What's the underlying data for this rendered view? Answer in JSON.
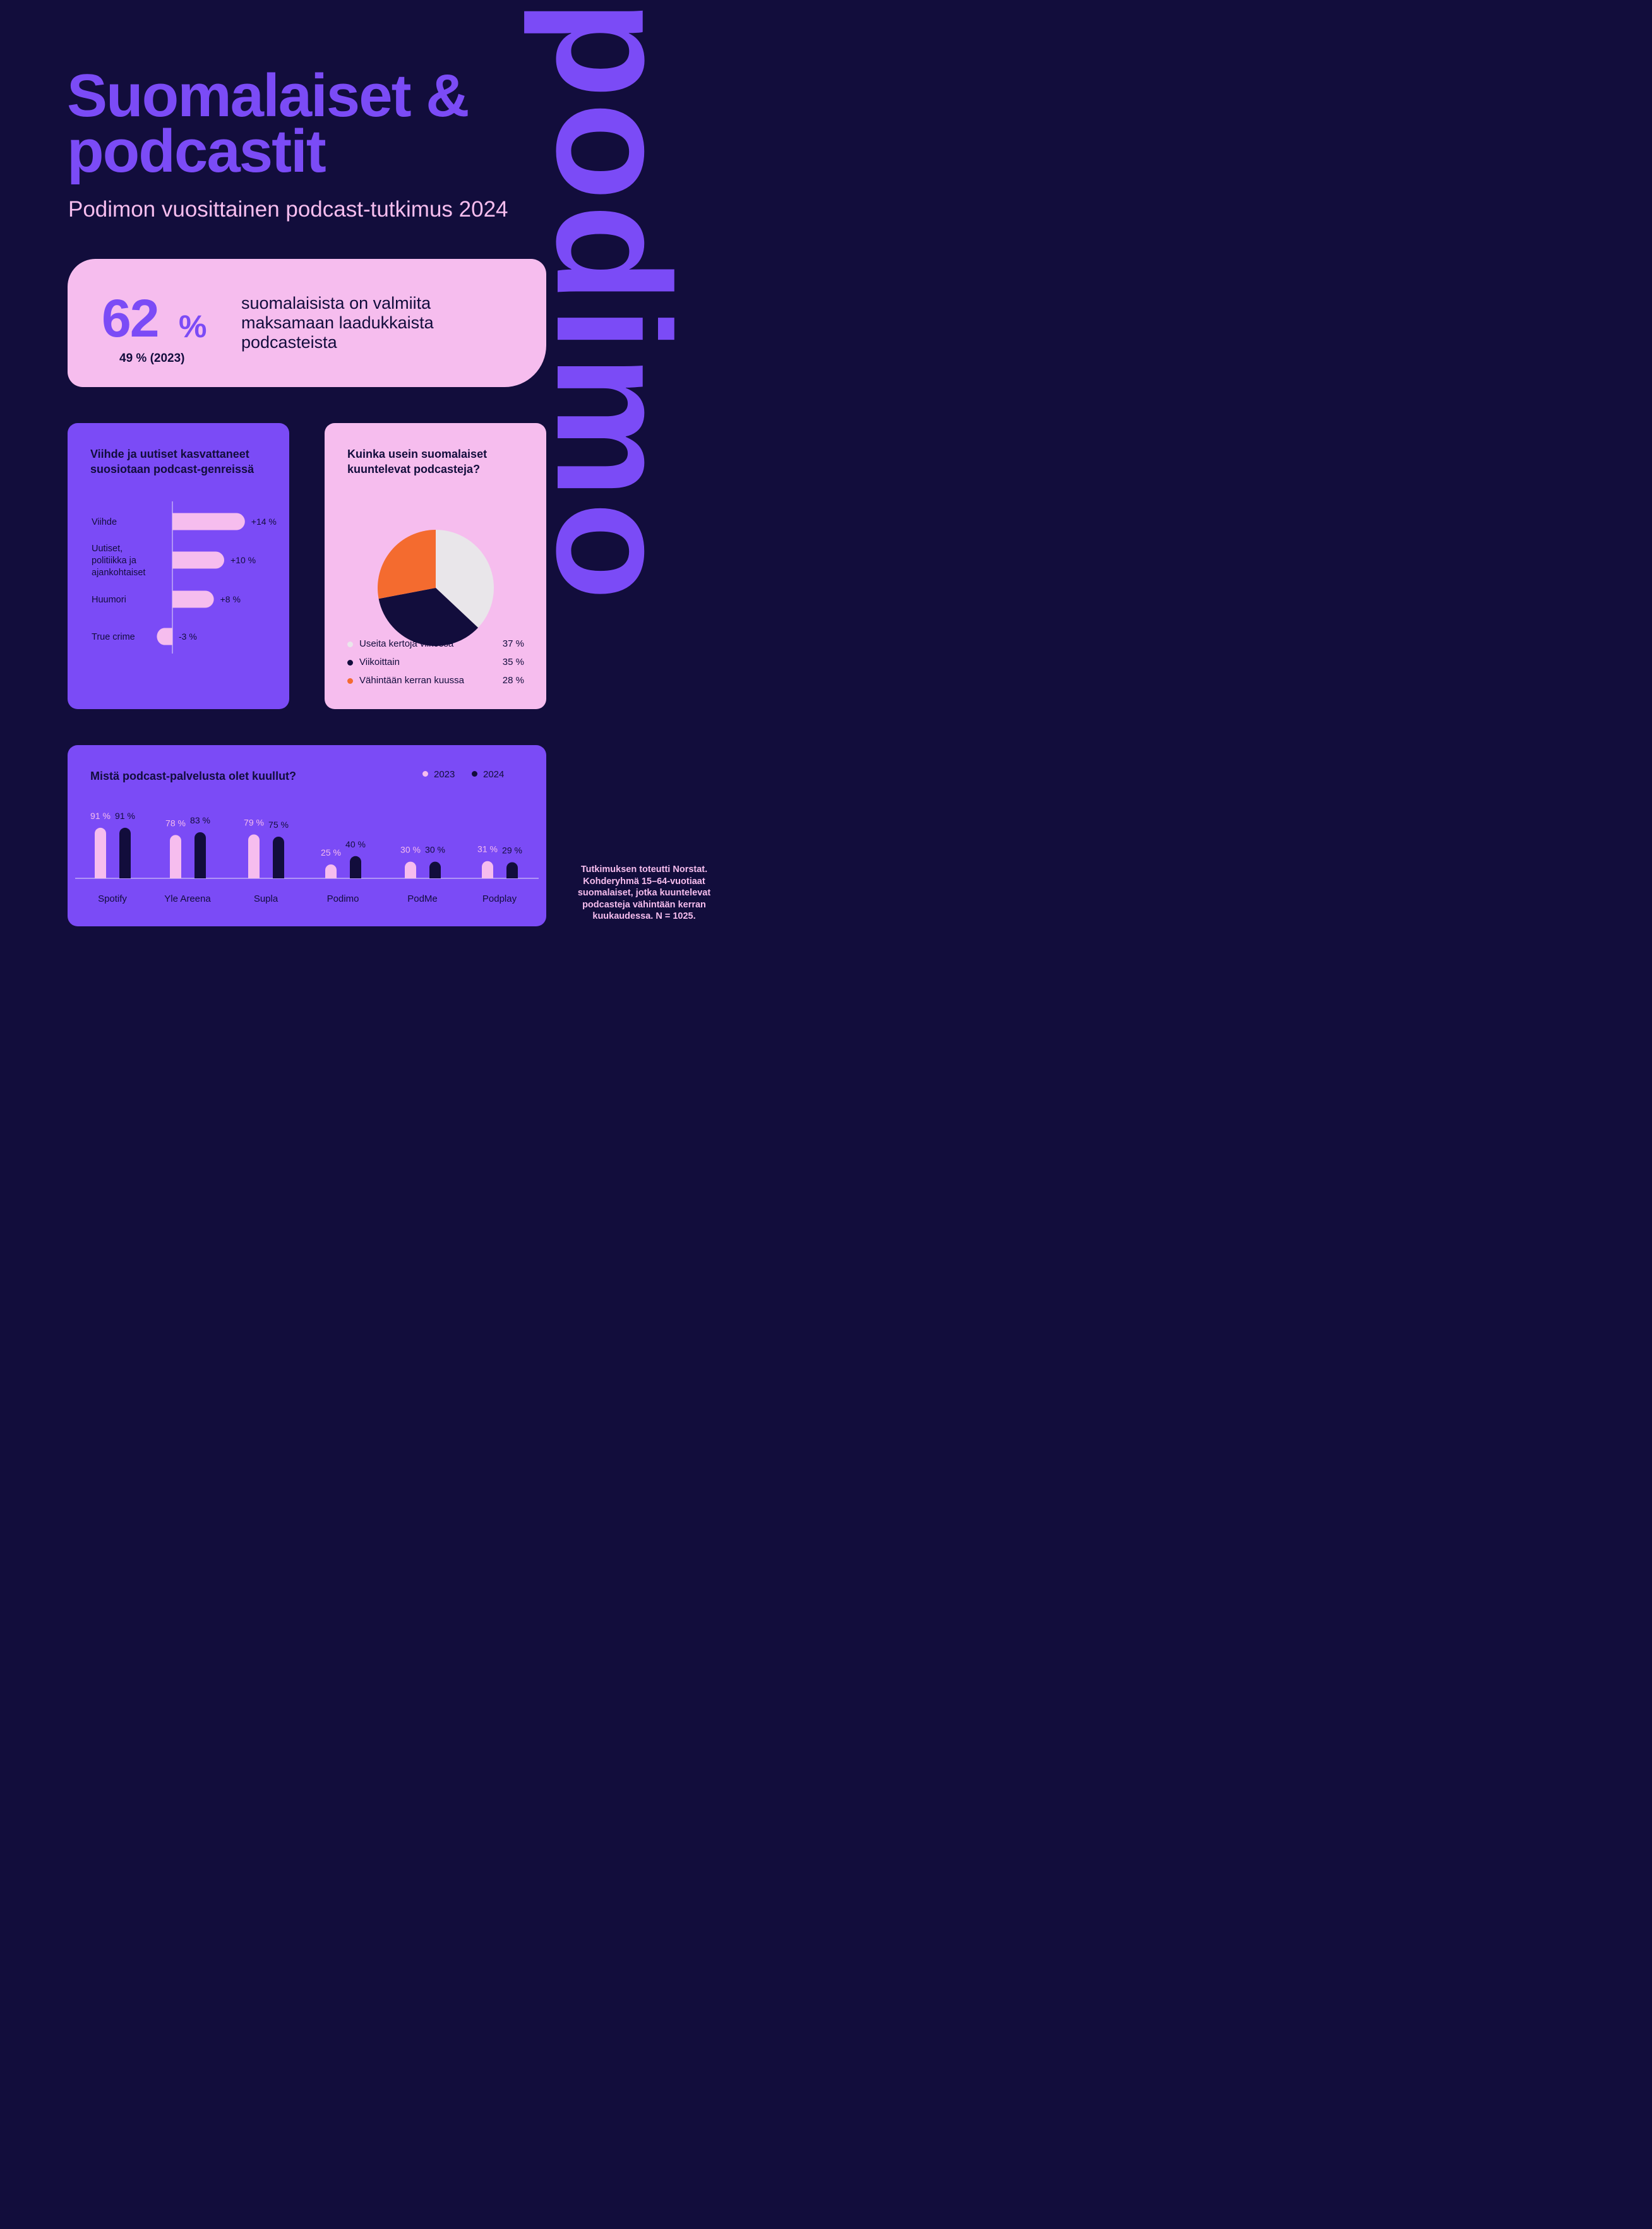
{
  "brand": {
    "name": "podimo",
    "color": "#7b4bf6"
  },
  "header": {
    "title_line1": "Suomalaiset &",
    "title_line2": "podcastit",
    "subtitle": "Podimon vuosittainen podcast-tutkimus 2024"
  },
  "highlight": {
    "value": "62",
    "unit": "%",
    "previous": "49 % (2023)",
    "text": "suomalaisista on valmiita maksamaan laadukkaista podcasteista"
  },
  "colors": {
    "background": "#120d3c",
    "purple": "#7b4bf6",
    "pink": "#f6bdee",
    "light_gray": "#e9e6ea",
    "orange": "#f46b2f"
  },
  "chart_data": [
    {
      "type": "bar",
      "orientation": "horizontal",
      "title": "Viihde ja uutiset kasvattaneet suosiotaan podcast-genreissä",
      "categories": [
        "Viihde",
        "Uutiset, politiikka ja ajankohtaiset",
        "Huumori",
        "True crime"
      ],
      "values": [
        14,
        10,
        8,
        -3
      ],
      "value_labels": [
        "+14 %",
        "+10 %",
        "+8 %",
        "-3 %"
      ],
      "unit": "%"
    },
    {
      "type": "pie",
      "title": "Kuinka usein suomalaiset kuuntelevat podcasteja?",
      "slices": [
        {
          "label": "Useita kertoja viikossa",
          "value": 37,
          "value_label": "37 %",
          "color": "#e9e6ea"
        },
        {
          "label": "Viikoittain",
          "value": 35,
          "value_label": "35 %",
          "color": "#120d3c"
        },
        {
          "label": "Vähintään kerran kuussa",
          "value": 28,
          "value_label": "28 %",
          "color": "#f46b2f"
        }
      ]
    },
    {
      "type": "bar",
      "title": "Mistä podcast-palvelusta olet kuullut?",
      "categories": [
        "Spotify",
        "Yle Areena",
        "Supla",
        "Podimo",
        "PodMe",
        "Podplay"
      ],
      "series": [
        {
          "name": "2023",
          "color": "#f6bdee",
          "values": [
            91,
            78,
            79,
            25,
            30,
            31
          ]
        },
        {
          "name": "2024",
          "color": "#120d3c",
          "values": [
            91,
            83,
            75,
            40,
            30,
            29
          ]
        }
      ],
      "ylim": [
        0,
        100
      ],
      "unit": "%",
      "legend": "top-right"
    }
  ],
  "footnote": "Tutkimuksen toteutti Norstat. Kohderyhmä 15–64-vuotiaat suomalaiset, jotka kuuntelevat podcasteja vähintään kerran kuukaudessa. N = 1025."
}
